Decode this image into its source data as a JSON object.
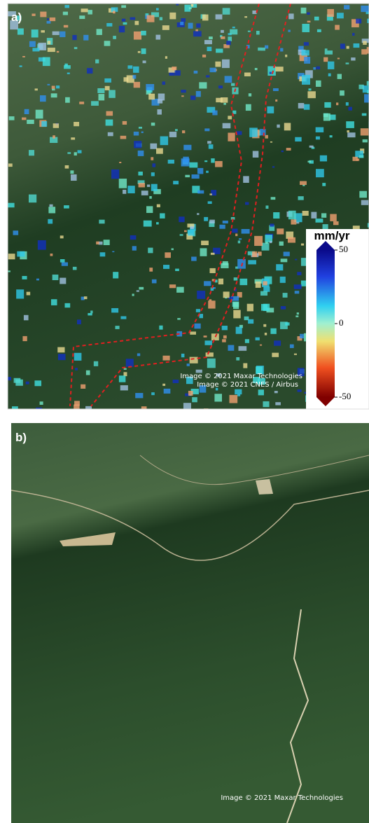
{
  "panels": [
    {
      "label": "a)",
      "credits": [
        "Image © 2021 Maxar Technologies",
        "Image © 2021 CNES / Airbus"
      ],
      "colorbar": {
        "unit": "mm/yr",
        "range": [
          -50,
          50
        ],
        "ticks": [
          50,
          0,
          -50
        ]
      }
    },
    {
      "label": "b)",
      "credits": [
        "Image © 2021 Maxar Technologies"
      ]
    }
  ]
}
